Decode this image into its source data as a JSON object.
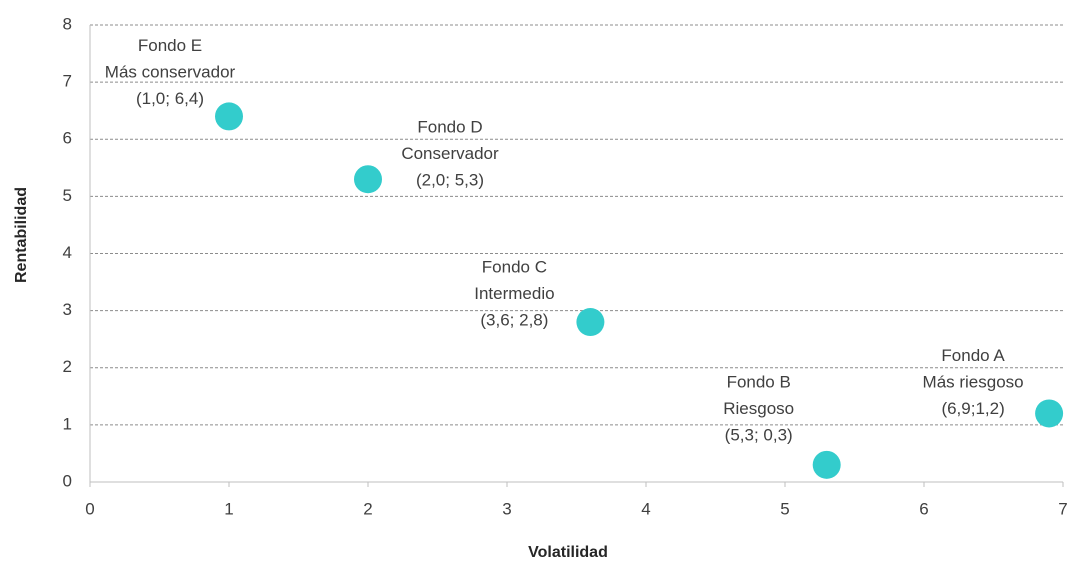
{
  "chart_data": {
    "type": "scatter",
    "x_label": "Volatilidad",
    "y_label": "Rentabilidad",
    "series": [
      {
        "color": "#33cccc",
        "x": [
          1.0,
          2.0,
          3.6,
          5.3,
          6.9
        ],
        "values": [
          6.4,
          5.3,
          2.8,
          0.3,
          1.2
        ],
        "point_labels": [
          [
            "Fondo E",
            "Más conservador",
            "(1,0; 6,4)"
          ],
          [
            "Fondo D",
            "Conservador",
            "(2,0; 5,3)"
          ],
          [
            "Fondo C",
            "Intermedio",
            "(3,6; 2,8)"
          ],
          [
            "Fondo B",
            "Riesgoso",
            "(5,3; 0,3)"
          ],
          [
            "Fondo A",
            "Más riesgoso",
            "(6,9;1,2)"
          ]
        ]
      }
    ],
    "xlim": [
      0,
      7
    ],
    "xticks": [
      0,
      1,
      2,
      3,
      4,
      5,
      6,
      7
    ],
    "ylim": [
      0,
      8
    ],
    "yticks": [
      0,
      1,
      2,
      3,
      4,
      5,
      6,
      7,
      8
    ],
    "grid": true
  }
}
